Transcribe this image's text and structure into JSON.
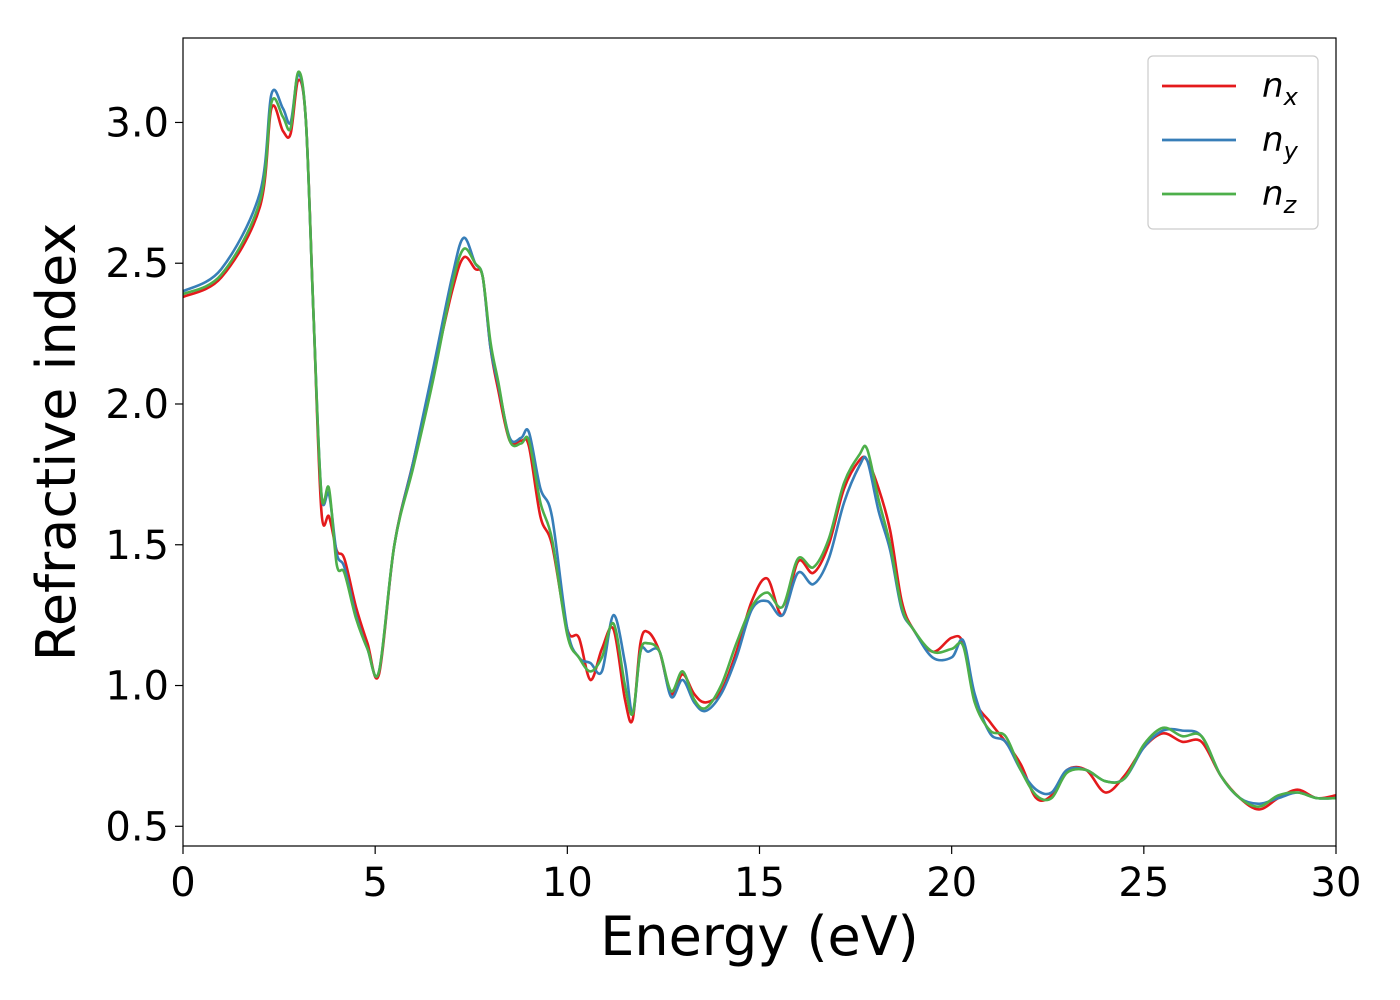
{
  "chart_data": {
    "type": "line",
    "xlabel": "Energy (eV)",
    "ylabel": "Refractive index",
    "xlim": [
      0,
      30
    ],
    "ylim": [
      0.43,
      3.3
    ],
    "xticks": [
      "0",
      "5",
      "10",
      "15",
      "20",
      "25",
      "30"
    ],
    "yticks": [
      "0.5",
      "1.0",
      "1.5",
      "2.0",
      "2.5",
      "3.0"
    ],
    "legend_position": "top-right",
    "grid": false,
    "series": [
      {
        "name": "n_x",
        "legend_main": "n",
        "legend_sub": "x",
        "color": "#e41a1c",
        "x": [
          0,
          1,
          2,
          2.3,
          2.6,
          2.8,
          3.0,
          3.2,
          3.4,
          3.6,
          3.8,
          4.0,
          4.2,
          4.5,
          4.8,
          5.1,
          5.5,
          6.0,
          6.5,
          7.0,
          7.3,
          7.6,
          7.8,
          8.0,
          8.2,
          8.5,
          8.8,
          9.0,
          9.3,
          9.6,
          10.0,
          10.3,
          10.6,
          10.9,
          11.2,
          11.5,
          11.7,
          11.9,
          12.1,
          12.4,
          12.7,
          13.0,
          13.3,
          13.6,
          14.0,
          14.4,
          14.8,
          15.2,
          15.6,
          16.0,
          16.4,
          16.8,
          17.2,
          17.6,
          17.8,
          18.1,
          18.4,
          18.7,
          19.0,
          19.5,
          20.0,
          20.3,
          20.6,
          21.0,
          21.4,
          21.8,
          22.2,
          22.6,
          23.0,
          23.5,
          24.0,
          24.5,
          25.0,
          25.5,
          26.0,
          26.5,
          27.0,
          27.5,
          28.0,
          28.5,
          29.0,
          29.5,
          30.0
        ],
        "y": [
          2.38,
          2.45,
          2.7,
          3.05,
          2.97,
          2.96,
          3.15,
          3.0,
          2.3,
          1.62,
          1.6,
          1.48,
          1.45,
          1.28,
          1.15,
          1.04,
          1.5,
          1.8,
          2.1,
          2.4,
          2.52,
          2.48,
          2.45,
          2.2,
          2.05,
          1.87,
          1.87,
          1.85,
          1.6,
          1.5,
          1.2,
          1.17,
          1.02,
          1.13,
          1.2,
          0.95,
          0.88,
          1.15,
          1.19,
          1.12,
          0.97,
          1.04,
          0.97,
          0.94,
          0.98,
          1.12,
          1.3,
          1.38,
          1.25,
          1.44,
          1.4,
          1.5,
          1.7,
          1.8,
          1.8,
          1.7,
          1.55,
          1.3,
          1.2,
          1.12,
          1.17,
          1.15,
          0.95,
          0.87,
          0.8,
          0.72,
          0.6,
          0.61,
          0.7,
          0.7,
          0.62,
          0.68,
          0.78,
          0.83,
          0.8,
          0.8,
          0.68,
          0.6,
          0.56,
          0.6,
          0.63,
          0.6,
          0.61
        ]
      },
      {
        "name": "n_y",
        "legend_main": "n",
        "legend_sub": "y",
        "color": "#377eb8",
        "x": [
          0,
          1,
          2,
          2.3,
          2.6,
          2.8,
          3.0,
          3.2,
          3.4,
          3.6,
          3.8,
          4.0,
          4.2,
          4.5,
          4.8,
          5.1,
          5.5,
          6.0,
          6.5,
          7.0,
          7.3,
          7.6,
          7.8,
          8.0,
          8.2,
          8.5,
          8.8,
          9.0,
          9.3,
          9.6,
          10.0,
          10.3,
          10.6,
          10.9,
          11.2,
          11.5,
          11.7,
          11.9,
          12.1,
          12.4,
          12.7,
          13.0,
          13.3,
          13.6,
          14.0,
          14.4,
          14.8,
          15.2,
          15.6,
          16.0,
          16.4,
          16.8,
          17.2,
          17.6,
          17.8,
          18.1,
          18.4,
          18.7,
          19.0,
          19.5,
          20.0,
          20.3,
          20.6,
          21.0,
          21.4,
          21.8,
          22.2,
          22.6,
          23.0,
          23.5,
          24.0,
          24.5,
          25.0,
          25.5,
          26.0,
          26.5,
          27.0,
          27.5,
          28.0,
          28.5,
          29.0,
          29.5,
          30.0
        ],
        "y": [
          2.4,
          2.48,
          2.75,
          3.1,
          3.05,
          3.0,
          3.17,
          3.0,
          2.3,
          1.68,
          1.68,
          1.47,
          1.42,
          1.25,
          1.13,
          1.05,
          1.5,
          1.8,
          2.12,
          2.45,
          2.59,
          2.5,
          2.45,
          2.2,
          2.07,
          1.88,
          1.88,
          1.9,
          1.7,
          1.6,
          1.2,
          1.1,
          1.08,
          1.05,
          1.25,
          1.08,
          0.9,
          1.12,
          1.12,
          1.12,
          0.96,
          1.02,
          0.94,
          0.91,
          0.97,
          1.1,
          1.27,
          1.3,
          1.25,
          1.4,
          1.36,
          1.45,
          1.65,
          1.78,
          1.8,
          1.62,
          1.48,
          1.27,
          1.2,
          1.1,
          1.1,
          1.16,
          0.97,
          0.83,
          0.8,
          0.7,
          0.63,
          0.62,
          0.7,
          0.7,
          0.66,
          0.67,
          0.78,
          0.84,
          0.84,
          0.82,
          0.68,
          0.6,
          0.58,
          0.6,
          0.62,
          0.6,
          0.6
        ]
      },
      {
        "name": "n_z",
        "legend_main": "n",
        "legend_sub": "z",
        "color": "#4daf4a",
        "x": [
          0,
          1,
          2,
          2.3,
          2.6,
          2.8,
          3.0,
          3.2,
          3.4,
          3.6,
          3.8,
          4.0,
          4.2,
          4.5,
          4.8,
          5.1,
          5.5,
          6.0,
          6.5,
          7.0,
          7.3,
          7.6,
          7.8,
          8.0,
          8.2,
          8.5,
          8.8,
          9.0,
          9.3,
          9.6,
          10.0,
          10.3,
          10.6,
          10.9,
          11.2,
          11.5,
          11.7,
          11.9,
          12.1,
          12.4,
          12.7,
          13.0,
          13.3,
          13.6,
          14.0,
          14.4,
          14.8,
          15.2,
          15.6,
          16.0,
          16.4,
          16.8,
          17.2,
          17.6,
          17.8,
          18.1,
          18.4,
          18.7,
          19.0,
          19.5,
          20.0,
          20.3,
          20.6,
          21.0,
          21.4,
          21.8,
          22.2,
          22.6,
          23.0,
          23.5,
          24.0,
          24.5,
          25.0,
          25.5,
          26.0,
          26.5,
          27.0,
          27.5,
          28.0,
          28.5,
          29.0,
          29.5,
          30.0
        ],
        "y": [
          2.39,
          2.46,
          2.72,
          3.07,
          3.02,
          2.98,
          3.18,
          3.0,
          2.3,
          1.68,
          1.7,
          1.43,
          1.4,
          1.24,
          1.13,
          1.05,
          1.5,
          1.78,
          2.08,
          2.42,
          2.55,
          2.5,
          2.45,
          2.22,
          2.08,
          1.87,
          1.86,
          1.87,
          1.65,
          1.52,
          1.18,
          1.1,
          1.05,
          1.1,
          1.22,
          1.0,
          0.9,
          1.12,
          1.15,
          1.12,
          0.98,
          1.05,
          0.95,
          0.92,
          1.0,
          1.15,
          1.28,
          1.33,
          1.28,
          1.45,
          1.42,
          1.52,
          1.72,
          1.82,
          1.84,
          1.66,
          1.5,
          1.28,
          1.2,
          1.12,
          1.13,
          1.14,
          0.94,
          0.84,
          0.82,
          0.7,
          0.61,
          0.6,
          0.69,
          0.7,
          0.66,
          0.67,
          0.79,
          0.85,
          0.82,
          0.82,
          0.68,
          0.6,
          0.57,
          0.61,
          0.62,
          0.6,
          0.6
        ]
      }
    ]
  }
}
